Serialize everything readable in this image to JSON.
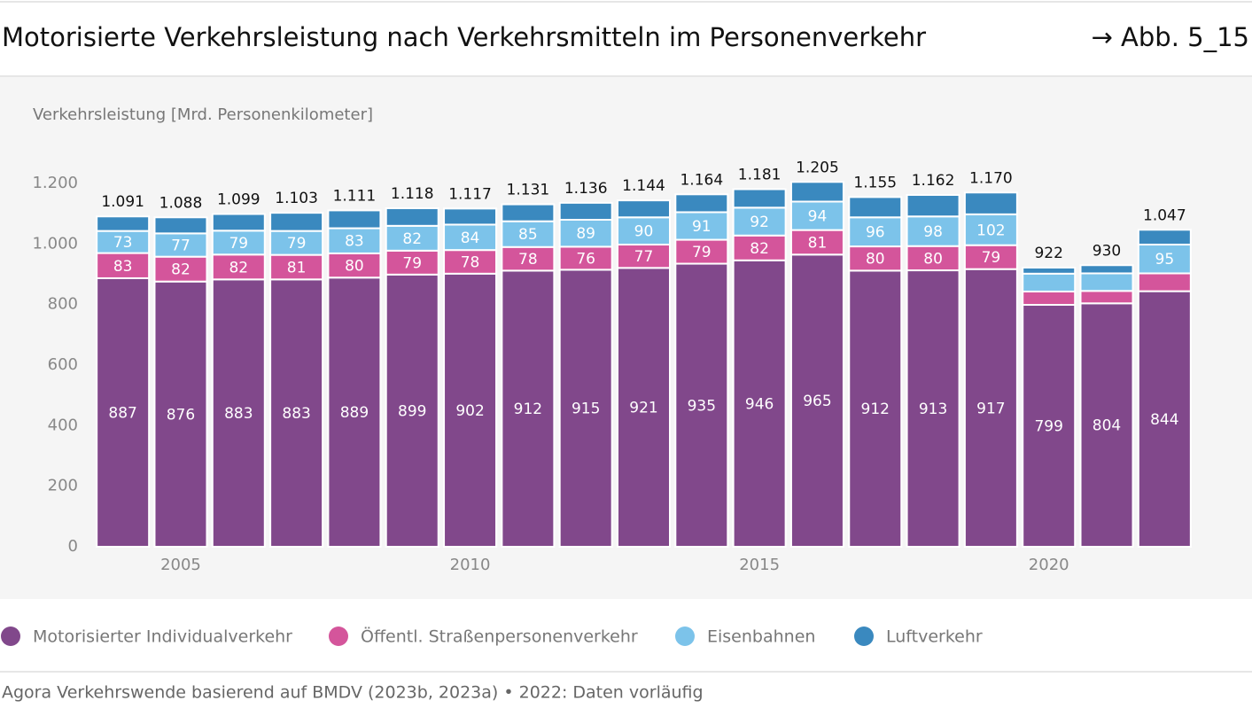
{
  "chart_data": {
    "type": "stacked_bar",
    "title": "Motorisierte Verkehrsleistung nach Verkehrsmitteln im Personenverkehr",
    "figure_ref": "→ Abb. 5_15",
    "y_label": "Verkehrsleistung [Mrd. Personenkilometer]",
    "source": "Agora Verkehrswende basierend auf BMDV (2023b, 2023a) • 2022: Daten vorläufig",
    "categories": [
      null,
      "2005",
      null,
      null,
      null,
      null,
      "2010",
      null,
      null,
      null,
      null,
      "2015",
      null,
      null,
      null,
      null,
      "2020",
      null,
      null
    ],
    "ylim": [
      0,
      1200
    ],
    "yticks": [
      0,
      200,
      400,
      600,
      800,
      {
        "value": 1000,
        "label": "1.000"
      },
      {
        "value": 1200,
        "label": "1.200"
      }
    ],
    "series": [
      {
        "name": "Motorisierter Individualverkehr",
        "color": "#81488b",
        "labels": true,
        "values": [
          887,
          876,
          883,
          883,
          889,
          899,
          902,
          912,
          915,
          921,
          935,
          946,
          965,
          912,
          913,
          917,
          799,
          804,
          844
        ]
      },
      {
        "name": "Öffentl. Straßenpersonenverkehr",
        "color": "#d4559b",
        "labels": true,
        "values": [
          83,
          82,
          82,
          81,
          80,
          79,
          78,
          78,
          76,
          77,
          79,
          82,
          81,
          80,
          80,
          79,
          44,
          41,
          59
        ]
      },
      {
        "name": "Eisenbahnen",
        "color": "#7cc3ea",
        "labels": true,
        "values": [
          73,
          77,
          79,
          79,
          83,
          82,
          84,
          85,
          89,
          90,
          91,
          92,
          94,
          96,
          98,
          102,
          59,
          58,
          95
        ]
      },
      {
        "name": "Luftverkehr",
        "color": "#3a89bf",
        "labels": false,
        "values": [
          48,
          53,
          55,
          60,
          59,
          58,
          53,
          56,
          56,
          56,
          59,
          61,
          65,
          67,
          71,
          72,
          20,
          27,
          49
        ]
      }
    ],
    "totals": {
      "values": [
        1091,
        1088,
        1099,
        1103,
        1111,
        1118,
        1117,
        1131,
        1136,
        1144,
        1164,
        1181,
        1205,
        1155,
        1162,
        1170,
        922,
        930,
        1047
      ],
      "value_labels": [
        "1.091",
        "1.088",
        "1.099",
        "1.103",
        "1.111",
        "1.118",
        "1.117",
        "1.131",
        "1.136",
        "1.144",
        "1.164",
        "1.181",
        "1.205",
        "1.155",
        "1.162",
        "1.170",
        "922",
        "930",
        "1.047"
      ]
    }
  }
}
